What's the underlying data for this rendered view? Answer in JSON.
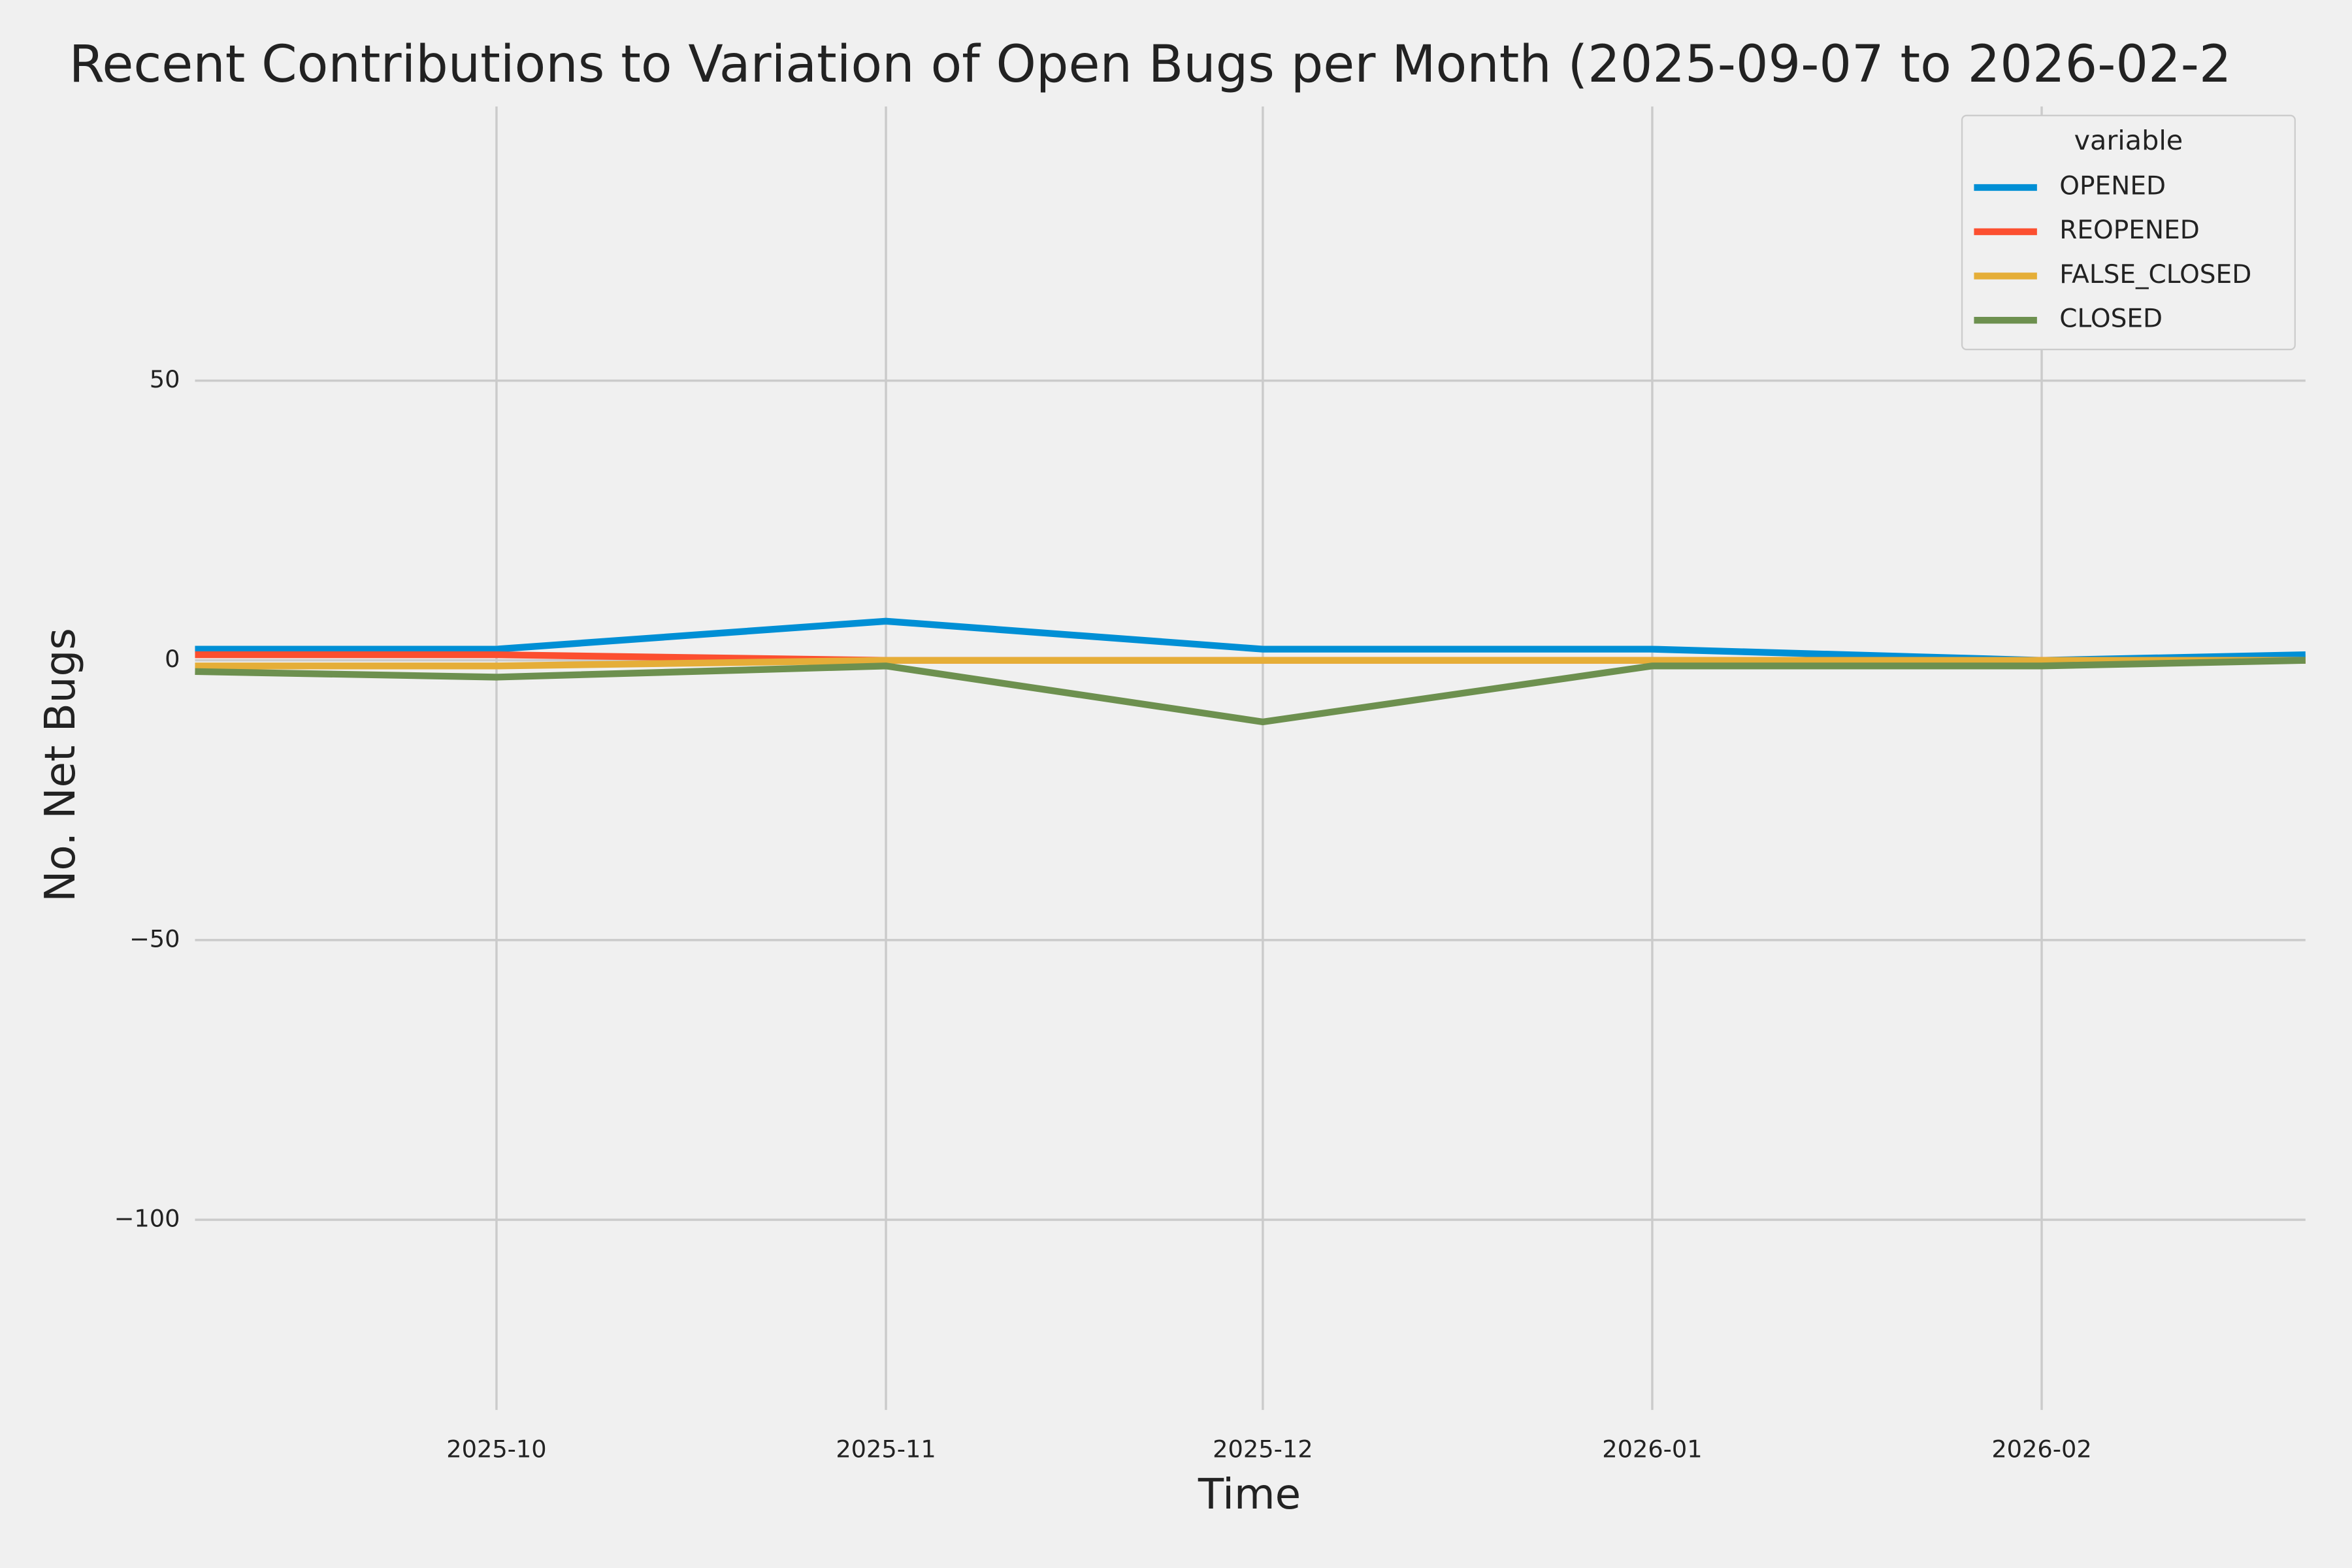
{
  "chart_data": {
    "type": "line",
    "title": "Recent Contributions to Variation of Open Bugs per Month (2025-09-07 to 2026-02-2",
    "x_label": "Time",
    "y_label": "No. Net Bugs",
    "x": [
      "2025-09-07",
      "2025-10-01",
      "2025-11-01",
      "2025-12-01",
      "2026-01-01",
      "2026-02-01",
      "2026-02-22"
    ],
    "xlim": [
      "2025-09-07",
      "2026-02-22"
    ],
    "xticks": [
      {
        "value": "2025-10-01",
        "label": "2025-10"
      },
      {
        "value": "2025-11-01",
        "label": "2025-11"
      },
      {
        "value": "2025-12-01",
        "label": "2025-12"
      },
      {
        "value": "2026-01-01",
        "label": "2026-01"
      },
      {
        "value": "2026-02-01",
        "label": "2026-02"
      }
    ],
    "ylim": [
      -134,
      99
    ],
    "yticks": [
      {
        "value": -100,
        "label": "−100"
      },
      {
        "value": -50,
        "label": "−50"
      },
      0,
      50
    ],
    "grid": true,
    "legend_title": "variable",
    "legend_position": "upper right",
    "series": [
      {
        "name": "OPENED",
        "color": "#008fd5",
        "values": [
          2,
          2,
          7,
          2,
          2,
          0,
          1
        ]
      },
      {
        "name": "REOPENED",
        "color": "#fc4f30",
        "values": [
          1,
          1,
          0,
          0,
          0,
          0,
          0
        ]
      },
      {
        "name": "FALSE_CLOSED",
        "color": "#e5ae38",
        "values": [
          -1,
          -1,
          0,
          0,
          0,
          0,
          0
        ]
      },
      {
        "name": "CLOSED",
        "color": "#6d904f",
        "values": [
          -2,
          -3,
          -1,
          -11,
          -1,
          -1,
          0
        ]
      }
    ]
  }
}
